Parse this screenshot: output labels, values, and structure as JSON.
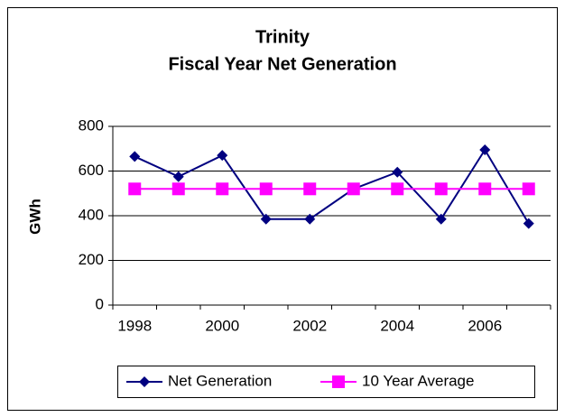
{
  "chart_data": {
    "type": "line",
    "title": [
      "Trinity",
      "Fiscal Year Net Generation"
    ],
    "y_label": "GWh",
    "categories": [
      "1998",
      null,
      "2000",
      null,
      "2002",
      null,
      "2004",
      null,
      "2006",
      null
    ],
    "series": [
      {
        "name": "Net Generation",
        "color": "#000080",
        "marker": "diamond",
        "values": [
          665,
          575,
          670,
          385,
          385,
          520,
          595,
          385,
          695,
          365
        ]
      },
      {
        "name": "10 Year Average",
        "color": "#ff00ff",
        "marker": "square",
        "values": [
          520,
          520,
          520,
          520,
          520,
          520,
          520,
          520,
          520,
          520
        ]
      }
    ],
    "ylim": [
      0,
      800
    ],
    "yticks": [
      0,
      200,
      400,
      600,
      800
    ],
    "grid": true,
    "legend": "bottom"
  }
}
